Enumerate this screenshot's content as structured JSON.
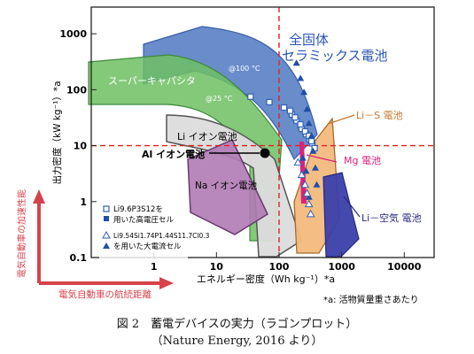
{
  "chart_data": {
    "type": "region",
    "xscale": "log",
    "yscale": "log",
    "xlim": [
      0.1,
      30000
    ],
    "ylim": [
      0.1,
      3000
    ],
    "xticks": [
      "1",
      "10",
      "100",
      "1000",
      "10000"
    ],
    "yticks": [
      "0.1",
      "1",
      "10",
      "100",
      "1000"
    ],
    "xtick_values": [
      1,
      10,
      100,
      1000,
      10000
    ],
    "ytick_values": [
      0.1,
      1,
      10,
      100,
      1000
    ],
    "xlabel": "エネルギー密度（Wh kg⁻¹）*a",
    "ylabel": "出力密度（kW kg⁻¹）*a",
    "left_arrow_label": "電気自動車の加速性能",
    "bottom_arrow_label": "電気自動車の航続距離",
    "footnote": "*a: 活物質量重さあたり",
    "reference_lines": {
      "x": 100,
      "y": 10
    },
    "regions": [
      {
        "name": "全固体\nセラミックス電池",
        "color": "#4f79c2"
      },
      {
        "name": "スーパーキャパシタ",
        "color": "#6fbf63"
      },
      {
        "name": "Li イオン電池",
        "color": "#dcdcdc"
      },
      {
        "name": "Na イオン電池",
        "color": "#b07ab5"
      },
      {
        "name": "Li－S 電池",
        "color": "#f2b97c"
      },
      {
        "name": "Li－空気 電池",
        "color": "#3a3faa"
      },
      {
        "name": "Mg 電池",
        "color": "#e0207a"
      },
      {
        "name": "Al イオン電池",
        "color": "#000000"
      }
    ],
    "annotations": [
      "@100 °C",
      "@25 °C"
    ],
    "series": [
      {
        "name": "Li9.6P3S12を\n用いた高電圧セル",
        "marker": "open-square",
        "x": [
          35,
          70,
          120,
          160,
          190,
          230,
          270,
          310,
          340,
          370,
          220,
          260,
          300,
          330,
          150,
          180
        ],
        "y": [
          75,
          60,
          48,
          36,
          28,
          20,
          16,
          13,
          11,
          9,
          24,
          18,
          15,
          12,
          42,
          32
        ]
      },
      {
        "name": "Li9.54Si1.74P1.44S11.7Cl0.3\nを用いた大電流セル",
        "marker": "filled-triangle",
        "x": [
          190,
          220,
          250,
          280,
          300,
          330,
          350,
          380,
          400,
          300,
          270,
          240
        ],
        "y": [
          300,
          160,
          90,
          45,
          25,
          15,
          8,
          4,
          2,
          1.2,
          3.5,
          6
        ]
      },
      {
        "name": "",
        "marker": "open-triangle",
        "x": [
          200,
          230,
          260,
          280,
          300,
          320
        ],
        "y": [
          5,
          3,
          2,
          1.4,
          0.9,
          0.6
        ]
      }
    ]
  },
  "caption": {
    "line1": "図 2　蓄電デバイスの実力（ラゴンプロット）",
    "line2": "（Nature Energy, 2016 より）"
  },
  "colors": {
    "reference_line": "#e02020",
    "arrow": "#d6424b"
  }
}
